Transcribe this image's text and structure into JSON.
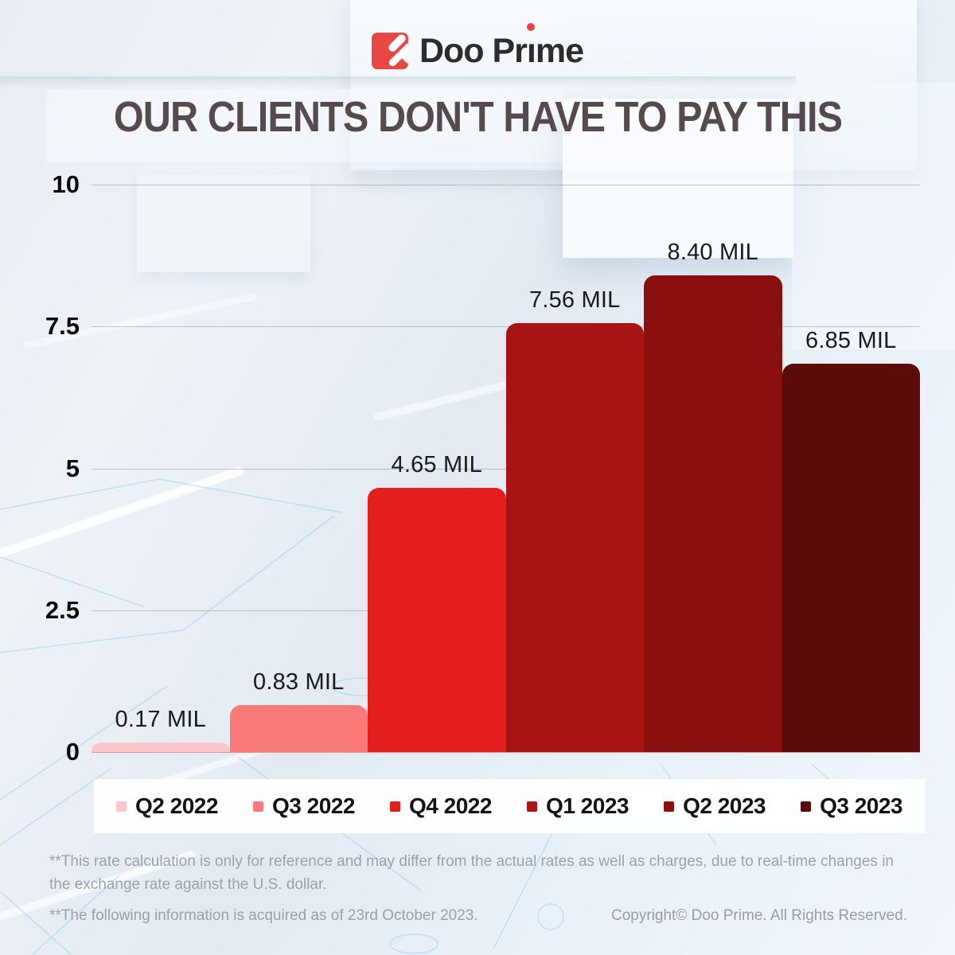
{
  "brand": {
    "name": "Doo Prime",
    "wordmark_parts": [
      "Doo Pr",
      "ı",
      "me"
    ],
    "logo_color": "#e84744",
    "accent_red": "#e8433f"
  },
  "header": {
    "title": "OUR CLIENTS DON'T HAVE TO PAY THIS"
  },
  "chart_data": {
    "type": "bar",
    "title": "OUR CLIENTS DON'T HAVE TO PAY THIS",
    "categories": [
      "Q2 2022",
      "Q3 2022",
      "Q4 2022",
      "Q1 2023",
      "Q2 2023",
      "Q3 2023"
    ],
    "values": [
      0.17,
      0.83,
      4.65,
      7.56,
      8.4,
      6.85
    ],
    "value_labels": [
      "0.17 MIL",
      "0.83 MIL",
      "4.65 MIL",
      "7.56 MIL",
      "8.40 MIL",
      "6.85 MIL"
    ],
    "unit": "MIL",
    "bar_colors": [
      "#fbc6c6",
      "#f97a78",
      "#e31e1d",
      "#a81414",
      "#8a1010",
      "#5c0b0b"
    ],
    "y_ticks": [
      "10",
      "7.5",
      "5",
      "2.5",
      "0"
    ],
    "ylim": [
      0,
      10
    ],
    "grid": true,
    "legend_position": "bottom"
  },
  "footnotes": {
    "note1": "**This rate calculation is only for reference and may differ from the actual rates as well as charges, due to real-time changes in the exchange rate against the U.S. dollar.",
    "note2": "**The following information is acquired as of 23rd October 2023."
  },
  "copyright": "Copyright© Doo Prime. All Rights Reserved."
}
